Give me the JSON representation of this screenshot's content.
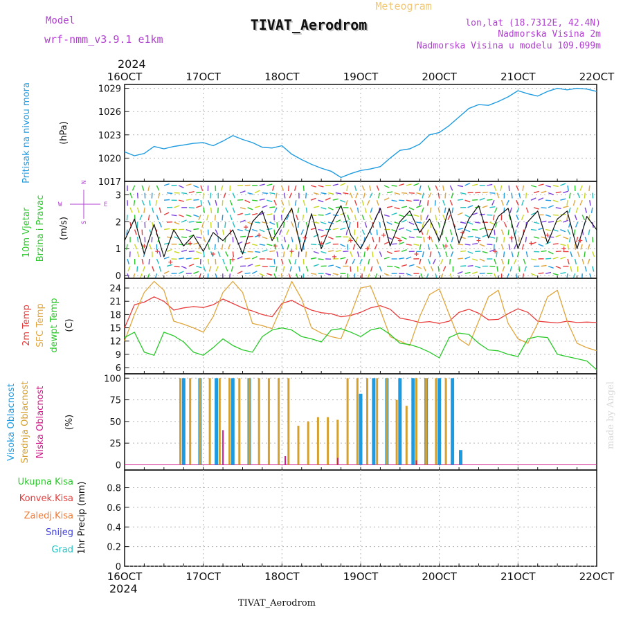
{
  "header": {
    "model_label": "Model",
    "model_value": "wrf-nmm_v3.9.1  e1km",
    "section_label": "Meteogram",
    "title": "TIVAT_Aerodrom",
    "location_line": "lon,lat (18.7312E, 42.4N)",
    "elevation_line": "Nadmorska Visina 2m",
    "model_elevation_line": "Nadmorska Visina u modelu 109.099m",
    "footer_title": "TIVAT_Aerodrom",
    "watermark": "made by Angel",
    "year": "2024"
  },
  "time_axis": {
    "labels": [
      "16OCT",
      "17OCT",
      "18OCT",
      "19OCT",
      "20OCT",
      "21OCT",
      "22OCT"
    ],
    "range_hours": [
      0,
      144
    ]
  },
  "colors": {
    "pressure": "#1e9be0",
    "temp2m": "#e83a3a",
    "sfc": "#e0a63c",
    "dew": "#28c828",
    "high_cloud": "#1e9be0",
    "mid_cloud": "#d4a030",
    "low_cloud": "#d0198a",
    "grid": "#b4b4b4",
    "model_text": "#b040d0",
    "ukupna": "#28c828",
    "konvek": "#e83a3a",
    "zaledj": "#f07830",
    "snijeg": "#4040e0",
    "grad": "#20c0c0",
    "watermark": "#d8d8d8"
  },
  "chart_data": [
    {
      "type": "line",
      "panel": "pressure",
      "ylabel": "Pritisak na nivou mora",
      "unit": "(hPa)",
      "ylim": [
        1017,
        1029.5
      ],
      "yticks": [
        1017,
        1020,
        1023,
        1026,
        1029
      ],
      "grid": true,
      "series": [
        {
          "name": "Pritisak na nivou mora",
          "color_key": "pressure",
          "x": [
            0,
            3,
            6,
            9,
            12,
            15,
            18,
            21,
            24,
            27,
            30,
            33,
            36,
            39,
            42,
            45,
            48,
            51,
            54,
            57,
            60,
            63,
            66,
            69,
            72,
            75,
            78,
            81,
            84,
            87,
            90,
            93,
            96,
            99,
            102,
            105,
            108,
            111,
            114,
            117,
            120,
            123,
            126,
            129,
            132,
            135,
            138,
            141,
            144
          ],
          "y": [
            1020.8,
            1020.3,
            1020.6,
            1021.5,
            1021.2,
            1021.5,
            1021.7,
            1021.9,
            1022.0,
            1021.6,
            1022.2,
            1022.9,
            1022.4,
            1022.0,
            1021.4,
            1021.3,
            1021.6,
            1020.5,
            1019.8,
            1019.2,
            1018.7,
            1018.3,
            1017.5,
            1018.0,
            1018.4,
            1018.6,
            1018.9,
            1020.0,
            1021.0,
            1021.2,
            1021.8,
            1023.0,
            1023.3,
            1024.2,
            1025.3,
            1026.4,
            1026.9,
            1026.8,
            1027.3,
            1027.9,
            1028.7,
            1028.3,
            1028.0,
            1028.6,
            1029.0,
            1028.8,
            1029.0,
            1028.9,
            1028.6
          ]
        }
      ]
    },
    {
      "type": "scatter",
      "panel": "wind",
      "ylabel": "10m Vjetar Brzina i Pravac",
      "unit": "(m/s)",
      "compass": {
        "north": "N",
        "south": "S",
        "east": "E",
        "west": "W"
      },
      "ylim": [
        -0.1,
        3.5
      ],
      "yticks": [
        0,
        1,
        2,
        3
      ],
      "grid": true,
      "series": [
        {
          "name": "speed",
          "color": "#101010",
          "x": [
            0,
            3,
            6,
            9,
            12,
            15,
            18,
            21,
            24,
            27,
            30,
            33,
            36,
            39,
            42,
            45,
            48,
            51,
            54,
            57,
            60,
            63,
            66,
            69,
            72,
            75,
            78,
            81,
            84,
            87,
            90,
            93,
            96,
            99,
            102,
            105,
            108,
            111,
            114,
            117,
            120,
            123,
            126,
            129,
            132,
            135,
            138,
            141,
            144
          ],
          "y": [
            1.3,
            2.1,
            0.8,
            1.9,
            0.7,
            1.7,
            1.1,
            1.5,
            0.9,
            1.6,
            1.3,
            1.7,
            0.8,
            2.0,
            2.4,
            1.3,
            1.9,
            2.5,
            0.9,
            2.3,
            1.0,
            1.9,
            2.6,
            1.5,
            1.0,
            1.7,
            2.5,
            1.1,
            2.0,
            2.4,
            1.6,
            2.1,
            1.3,
            2.5,
            1.2,
            2.1,
            2.6,
            1.4,
            2.2,
            2.5,
            1.0,
            2.0,
            2.4,
            1.2,
            2.1,
            2.4,
            1.0,
            2.2,
            1.7
          ]
        },
        {
          "name": "gust-markers",
          "color_key": "temp2m",
          "x": [
            6,
            10,
            14,
            20,
            27,
            33,
            37,
            41,
            46,
            51,
            55,
            60,
            64,
            69,
            74,
            79,
            84,
            89,
            93,
            98,
            103,
            108,
            113,
            118,
            124,
            129,
            134,
            139
          ],
          "y": [
            1.1,
            0.9,
            0.5,
            1.2,
            0.8,
            0.6,
            1.8,
            1.5,
            1.1,
            0.9,
            1.4,
            1.2,
            0.7,
            1.3,
            1.0,
            1.5,
            1.3,
            0.8,
            1.4,
            1.1,
            1.6,
            1.3,
            0.9,
            1.4,
            1.2,
            1.5,
            1.0,
            1.3
          ]
        }
      ]
    },
    {
      "type": "line",
      "panel": "temperature",
      "ylabel": [
        "2m Temp",
        "SFC Temp",
        "dewpt Temp"
      ],
      "unit": "(C)",
      "ylim": [
        4.6,
        26.2
      ],
      "yticks": [
        6,
        9,
        12,
        15,
        18,
        21,
        24
      ],
      "grid": true,
      "x": [
        0,
        3,
        6,
        9,
        12,
        15,
        18,
        21,
        24,
        27,
        30,
        33,
        36,
        39,
        42,
        45,
        48,
        51,
        54,
        57,
        60,
        63,
        66,
        69,
        72,
        75,
        78,
        81,
        84,
        87,
        90,
        93,
        96,
        99,
        102,
        105,
        108,
        111,
        114,
        117,
        120,
        123,
        126,
        129,
        132,
        135,
        138,
        141,
        144
      ],
      "series": [
        {
          "name": "2m Temp",
          "color_key": "temp2m",
          "y": [
            15.0,
            20.2,
            20.8,
            22.0,
            21.0,
            19.0,
            19.5,
            19.8,
            19.6,
            20.2,
            21.5,
            20.5,
            19.5,
            18.8,
            18.0,
            17.5,
            20.5,
            21.2,
            20.0,
            19.0,
            18.4,
            18.2,
            17.5,
            17.8,
            18.5,
            19.5,
            20.0,
            19.2,
            17.2,
            16.8,
            16.2,
            16.4,
            16.0,
            16.5,
            18.5,
            19.2,
            18.3,
            16.8,
            16.9,
            18.2,
            19.3,
            18.5,
            16.5,
            16.3,
            16.1,
            16.5,
            16.2,
            16.3,
            16.2
          ]
        },
        {
          "name": "SFC Temp",
          "color_key": "sfc",
          "y": [
            12.0,
            18.0,
            23.0,
            25.5,
            23.5,
            16.5,
            15.8,
            15.0,
            14.0,
            17.5,
            23.0,
            25.5,
            23.0,
            16.0,
            15.5,
            14.8,
            20.0,
            25.5,
            21.5,
            15.0,
            13.8,
            13.0,
            12.5,
            18.0,
            24.0,
            24.5,
            19.0,
            13.0,
            12.0,
            11.0,
            17.5,
            22.5,
            23.8,
            18.0,
            12.5,
            11.0,
            16.5,
            22.0,
            23.5,
            16.0,
            12.5,
            11.5,
            16.0,
            22.0,
            23.5,
            16.5,
            11.5,
            10.5,
            9.8
          ]
        },
        {
          "name": "dewpt Temp",
          "color_key": "dew",
          "y": [
            12.8,
            14.0,
            9.5,
            8.8,
            14.0,
            13.2,
            11.8,
            9.5,
            8.8,
            10.5,
            12.5,
            11.0,
            10.0,
            9.5,
            13.0,
            14.5,
            15.0,
            14.5,
            13.0,
            12.5,
            11.8,
            14.5,
            14.8,
            14.0,
            13.0,
            14.5,
            15.0,
            13.5,
            11.5,
            11.2,
            10.5,
            9.5,
            8.2,
            12.8,
            13.8,
            13.5,
            11.5,
            10.0,
            9.8,
            9.0,
            8.5,
            12.5,
            13.0,
            12.8,
            9.0,
            8.5,
            8.0,
            7.5,
            5.5
          ]
        }
      ]
    },
    {
      "type": "bar",
      "panel": "clouds",
      "ylabel": [
        "Visoka Oblacnost",
        "Srednja Oblacnost",
        "Niska Oblacnost"
      ],
      "unit": "(%)",
      "ylim": [
        -6,
        105
      ],
      "yticks": [
        0,
        25,
        50,
        75,
        100
      ],
      "grid": true,
      "series": [
        {
          "name": "Visoka Oblacnost",
          "color_key": "high_cloud",
          "x": [
            18.0,
            23.0,
            28.0,
            33.0,
            38.0,
            43.0,
            48.0,
            53.0,
            58.0,
            63.0,
            68.0,
            72.0,
            76.0,
            80.0,
            84.0,
            88.0,
            92.0,
            96.0,
            100.0,
            102.5
          ],
          "y": [
            100,
            100,
            100,
            100,
            100,
            0,
            0,
            0,
            0,
            0,
            0,
            82,
            100,
            100,
            100,
            100,
            100,
            100,
            100,
            17
          ]
        },
        {
          "name": "Srednja Oblacnost",
          "color_key": "mid_cloud",
          "x": [
            17.0,
            20.0,
            23.0,
            26.0,
            29.0,
            32.0,
            35.0,
            38.0,
            41.0,
            44.0,
            47.0,
            50.0,
            53.0,
            56.0,
            59.0,
            62.0,
            65.0,
            68.0,
            71.0,
            74.0,
            77.0,
            80.0,
            83.0,
            86.0,
            89.0,
            92.0,
            95.0,
            98.0
          ],
          "y": [
            100,
            100,
            100,
            100,
            100,
            100,
            100,
            100,
            100,
            100,
            100,
            100,
            45,
            50,
            55,
            55,
            52,
            100,
            100,
            100,
            100,
            100,
            75,
            68,
            100,
            100,
            100,
            100
          ]
        },
        {
          "name": "Niska Oblacnost",
          "color_key": "low_cloud",
          "x": [
            30.0,
            49.0,
            65.0,
            89.0
          ],
          "y": [
            40,
            10,
            8,
            5
          ]
        }
      ]
    },
    {
      "type": "line",
      "panel": "precip",
      "unit": "1hr Precip (mm)",
      "ylim": [
        0,
        0.98
      ],
      "yticks": [
        0,
        0.2,
        0.4,
        0.6,
        0.8
      ],
      "grid": true,
      "legend": [
        "Ukupna Kisa",
        "Konvek.Kisa",
        "Zaledj.Kisa",
        "Snijeg",
        "Grad"
      ],
      "series": []
    }
  ]
}
